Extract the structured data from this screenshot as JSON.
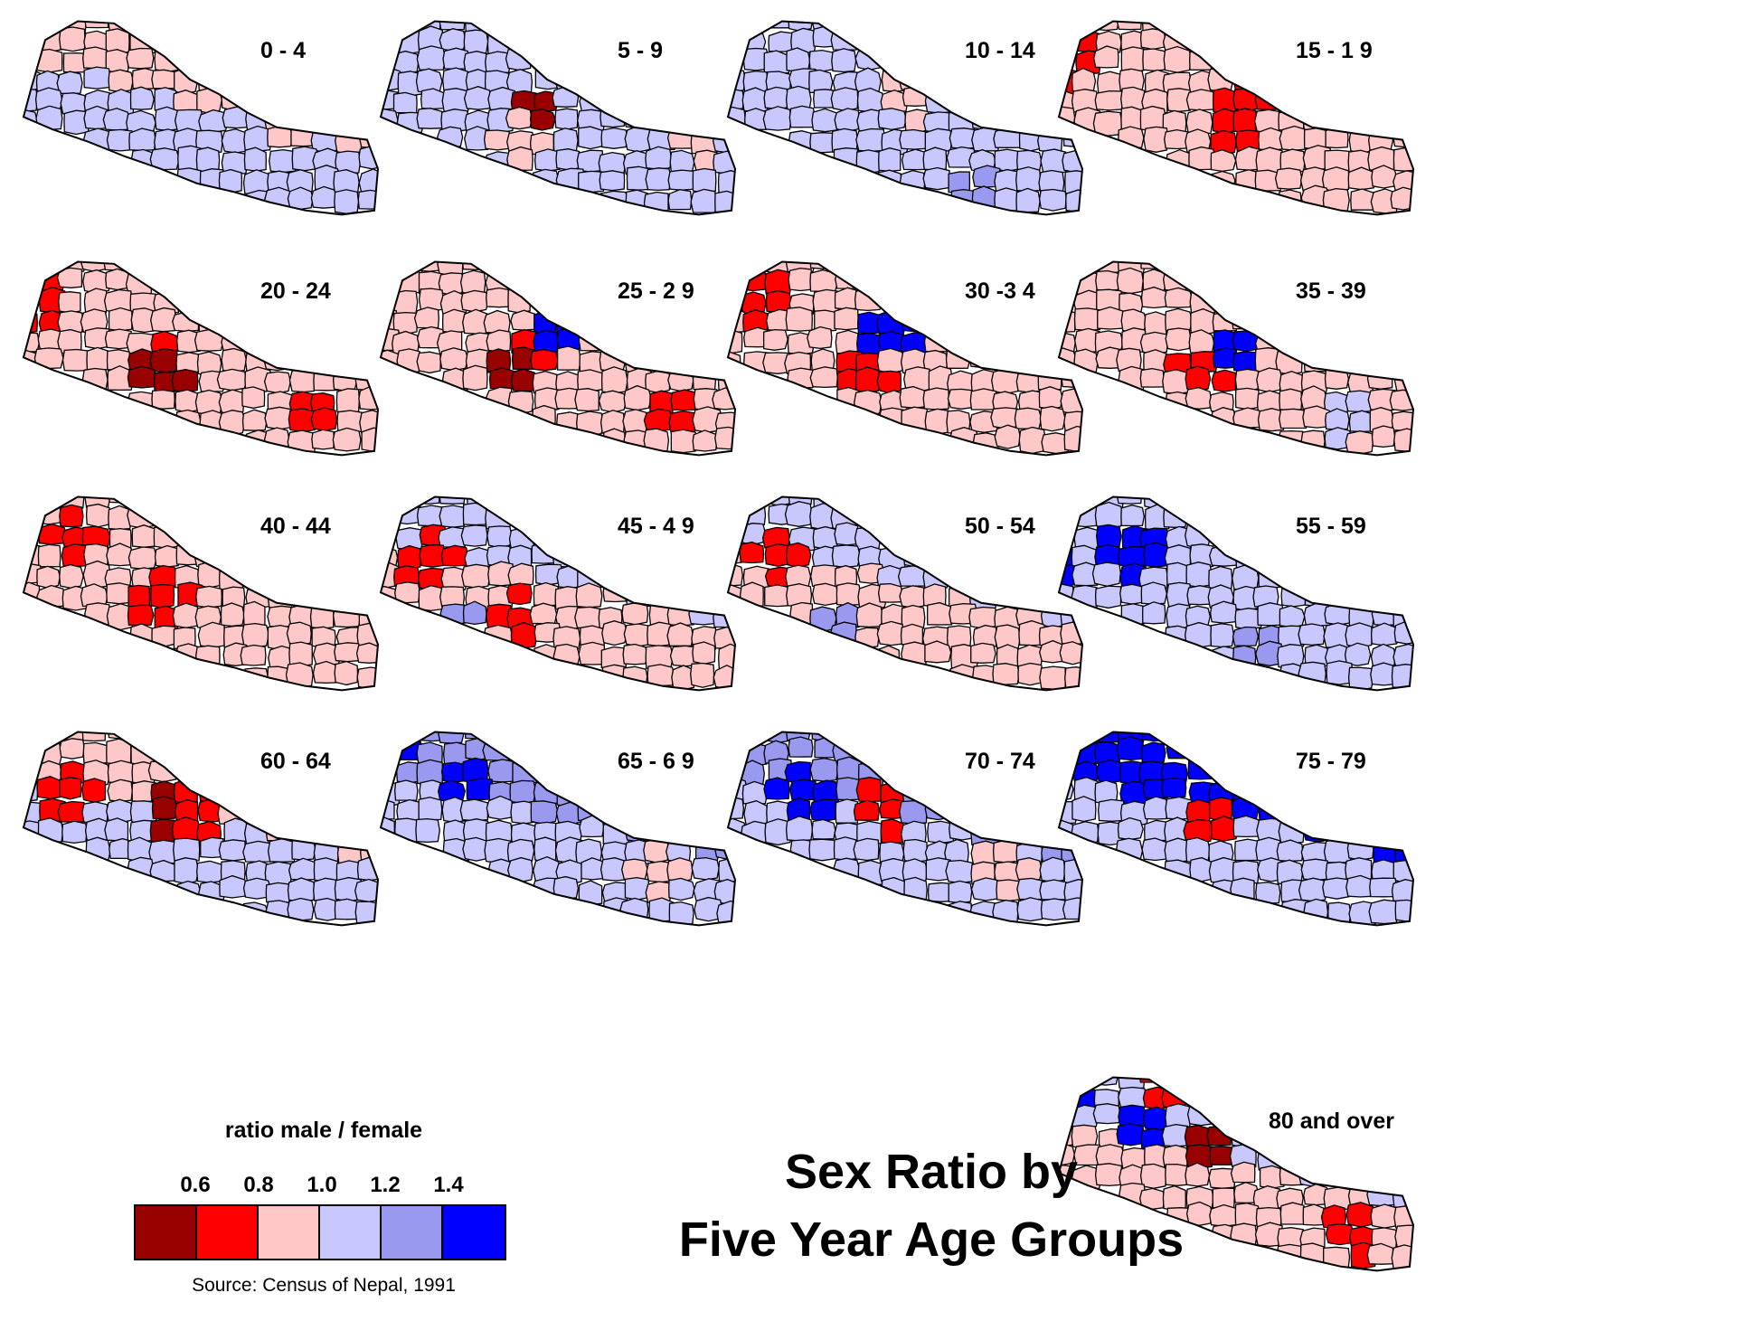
{
  "title": [
    "Sex Ratio by",
    "Five Year Age Groups"
  ],
  "legend": {
    "title": "ratio male / female",
    "ticks": [
      "0.6",
      "0.8",
      "1.0",
      "1.2",
      "1.4"
    ],
    "colors": [
      "#990000",
      "#ff0000",
      "#ffc8c8",
      "#c8c8ff",
      "#9999f0",
      "#0000ff"
    ]
  },
  "source": "Source: Census of Nepal, 1991",
  "maps": [
    {
      "label": "0 - 4",
      "base": "#c8c8ff",
      "north": "#ffc8c8",
      "hot": [
        {
          "u": 0.48,
          "v": 0.35,
          "c": "#ffc8c8"
        },
        {
          "u": 0.78,
          "v": 0.55,
          "c": "#ffc8c8"
        }
      ]
    },
    {
      "label": "5 - 9",
      "base": "#c8c8ff",
      "north": "#c8c8ff",
      "hot": [
        {
          "u": 0.45,
          "v": 0.48,
          "c": "#990000"
        },
        {
          "u": 0.4,
          "v": 0.62,
          "c": "#ffc8c8"
        },
        {
          "u": 0.88,
          "v": 0.6,
          "c": "#ffc8c8"
        }
      ]
    },
    {
      "label": "10 - 14",
      "base": "#c8c8ff",
      "north": "#c8c8ff",
      "hot": [
        {
          "u": 0.52,
          "v": 0.42,
          "c": "#ffc8c8"
        },
        {
          "u": 0.7,
          "v": 0.85,
          "c": "#9999f0"
        }
      ]
    },
    {
      "label": "15 - 1 9",
      "base": "#ffc8c8",
      "north": "#ffc8c8",
      "hot": [
        {
          "u": 0.04,
          "v": 0.22,
          "c": "#ff0000"
        },
        {
          "u": 0.5,
          "v": 0.58,
          "c": "#ff0000"
        },
        {
          "u": 0.53,
          "v": 0.42,
          "c": "#ff0000"
        }
      ]
    },
    {
      "label": "20 - 24",
      "base": "#ffc8c8",
      "north": "#ffc8c8",
      "hot": [
        {
          "u": 0.05,
          "v": 0.25,
          "c": "#ff0000"
        },
        {
          "u": 0.38,
          "v": 0.55,
          "c": "#ff0000"
        },
        {
          "u": 0.4,
          "v": 0.58,
          "c": "#990000"
        },
        {
          "u": 0.82,
          "v": 0.75,
          "c": "#ff0000"
        }
      ]
    },
    {
      "label": "25 - 2 9",
      "base": "#ffc8c8",
      "north": "#ffc8c8",
      "hot": [
        {
          "u": 0.5,
          "v": 0.4,
          "c": "#0000ff"
        },
        {
          "u": 0.4,
          "v": 0.55,
          "c": "#ff0000"
        },
        {
          "u": 0.38,
          "v": 0.58,
          "c": "#990000"
        },
        {
          "u": 0.82,
          "v": 0.75,
          "c": "#ff0000"
        }
      ]
    },
    {
      "label": "30 -3 4",
      "base": "#ffc8c8",
      "north": "#ffc8c8",
      "hot": [
        {
          "u": 0.48,
          "v": 0.4,
          "c": "#0000ff"
        },
        {
          "u": 0.4,
          "v": 0.58,
          "c": "#ff0000"
        },
        {
          "u": 0.12,
          "v": 0.22,
          "c": "#ff0000"
        }
      ]
    },
    {
      "label": "35 - 39",
      "base": "#ffc8c8",
      "north": "#ffc8c8",
      "hot": [
        {
          "u": 0.42,
          "v": 0.55,
          "c": "#ff0000"
        },
        {
          "u": 0.52,
          "v": 0.48,
          "c": "#0000ff"
        },
        {
          "u": 0.8,
          "v": 0.8,
          "c": "#c8c8ff"
        }
      ]
    },
    {
      "label": "40 - 44",
      "base": "#ffc8c8",
      "north": "#ffc8c8",
      "hot": [
        {
          "u": 0.15,
          "v": 0.25,
          "c": "#ff0000"
        },
        {
          "u": 0.4,
          "v": 0.55,
          "c": "#ff0000"
        }
      ]
    },
    {
      "label": "45 - 4 9",
      "base": "#ffc8c8",
      "north": "#c8c8ff",
      "hot": [
        {
          "u": 0.15,
          "v": 0.35,
          "c": "#ff0000"
        },
        {
          "u": 0.4,
          "v": 0.62,
          "c": "#ff0000"
        },
        {
          "u": 0.25,
          "v": 0.7,
          "c": "#9999f0"
        }
      ]
    },
    {
      "label": "50 - 54",
      "base": "#ffc8c8",
      "north": "#c8c8ff",
      "hot": [
        {
          "u": 0.15,
          "v": 0.35,
          "c": "#ff0000"
        },
        {
          "u": 0.3,
          "v": 0.7,
          "c": "#9999f0"
        }
      ]
    },
    {
      "label": "55 - 59",
      "base": "#c8c8ff",
      "north": "#c8c8ff",
      "hot": [
        {
          "u": 0.22,
          "v": 0.3,
          "c": "#0000ff"
        },
        {
          "u": 0.02,
          "v": 0.4,
          "c": "#0000ff"
        },
        {
          "u": 0.55,
          "v": 0.78,
          "c": "#9999f0"
        }
      ]
    },
    {
      "label": "60 - 64",
      "base": "#c8c8ff",
      "north": "#ffc8c8",
      "hot": [
        {
          "u": 0.15,
          "v": 0.35,
          "c": "#ff0000"
        },
        {
          "u": 0.43,
          "v": 0.45,
          "c": "#990000"
        },
        {
          "u": 0.5,
          "v": 0.45,
          "c": "#ff0000"
        }
      ]
    },
    {
      "label": "65 - 6 9",
      "base": "#c8c8ff",
      "north": "#9999f0",
      "hot": [
        {
          "u": 0.05,
          "v": 0.1,
          "c": "#0000ff"
        },
        {
          "u": 0.25,
          "v": 0.3,
          "c": "#0000ff"
        },
        {
          "u": 0.78,
          "v": 0.7,
          "c": "#ffc8c8"
        }
      ]
    },
    {
      "label": "70 - 74",
      "base": "#c8c8ff",
      "north": "#9999f0",
      "hot": [
        {
          "u": 0.22,
          "v": 0.35,
          "c": "#0000ff"
        },
        {
          "u": 0.45,
          "v": 0.4,
          "c": "#ff0000"
        },
        {
          "u": 0.78,
          "v": 0.7,
          "c": "#ffc8c8"
        }
      ]
    },
    {
      "label": "75 - 79",
      "base": "#c8c8ff",
      "north": "#0000ff",
      "hot": [
        {
          "u": 0.05,
          "v": 0.15,
          "c": "#0000ff"
        },
        {
          "u": 0.25,
          "v": 0.3,
          "c": "#0000ff"
        },
        {
          "u": 0.45,
          "v": 0.48,
          "c": "#ff0000"
        }
      ]
    },
    {
      "label": "80 and over",
      "base": "#ffc8c8",
      "north": "#c8c8ff",
      "hot": [
        {
          "u": 0.25,
          "v": 0.25,
          "c": "#0000ff"
        },
        {
          "u": 0.3,
          "v": 0.1,
          "c": "#ff0000"
        },
        {
          "u": 0.45,
          "v": 0.4,
          "c": "#990000"
        },
        {
          "u": 0.82,
          "v": 0.8,
          "c": "#ff0000"
        },
        {
          "u": 0.05,
          "v": 0.1,
          "c": "#0000ff"
        }
      ]
    }
  ]
}
